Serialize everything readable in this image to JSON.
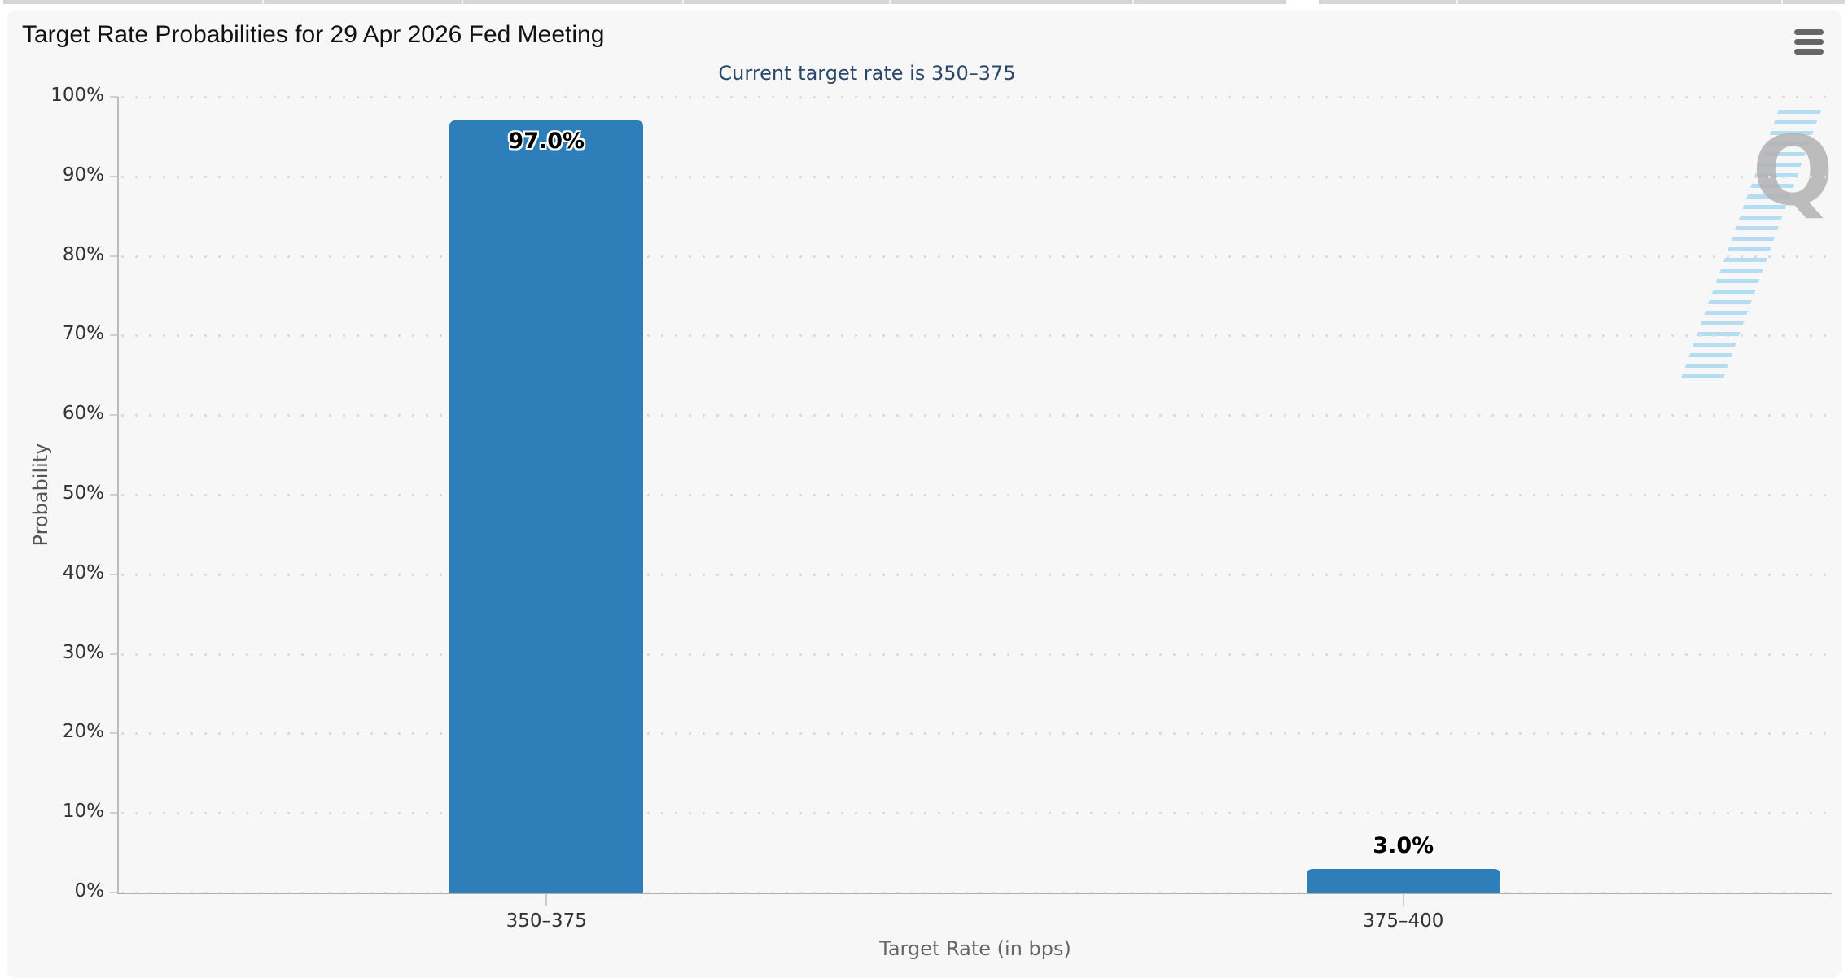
{
  "header": {
    "title": "Target Rate Probabilities for 29 Apr 2026 Fed Meeting",
    "subtitle": "Current target rate is 350–375"
  },
  "menu": {
    "icon": "hamburger-icon"
  },
  "watermark": {
    "letter": "Q"
  },
  "colors": {
    "bar": "#2d7eb9",
    "chart_background": "#f7f7f7",
    "subtitle_text": "#2b4769",
    "axis_label": "#333333",
    "axis_title": "#666666"
  },
  "chart_data": {
    "type": "bar",
    "title": "Target Rate Probabilities for 29 Apr 2026 Fed Meeting",
    "subtitle": "Current target rate is 350–375",
    "categories": [
      "350–375",
      "375–400"
    ],
    "values": [
      97.0,
      3.0
    ],
    "value_labels": [
      "97.0%",
      "3.0%"
    ],
    "xlabel": "Target Rate (in bps)",
    "ylabel": "Probability",
    "ylim": [
      0,
      100
    ],
    "ytick_step": 10,
    "ytick_labels": [
      "0%",
      "10%",
      "20%",
      "30%",
      "40%",
      "50%",
      "60%",
      "70%",
      "80%",
      "90%",
      "100%"
    ],
    "grid": "dotted horizontal",
    "legend": "none",
    "bar_color": "#2d7eb9"
  }
}
